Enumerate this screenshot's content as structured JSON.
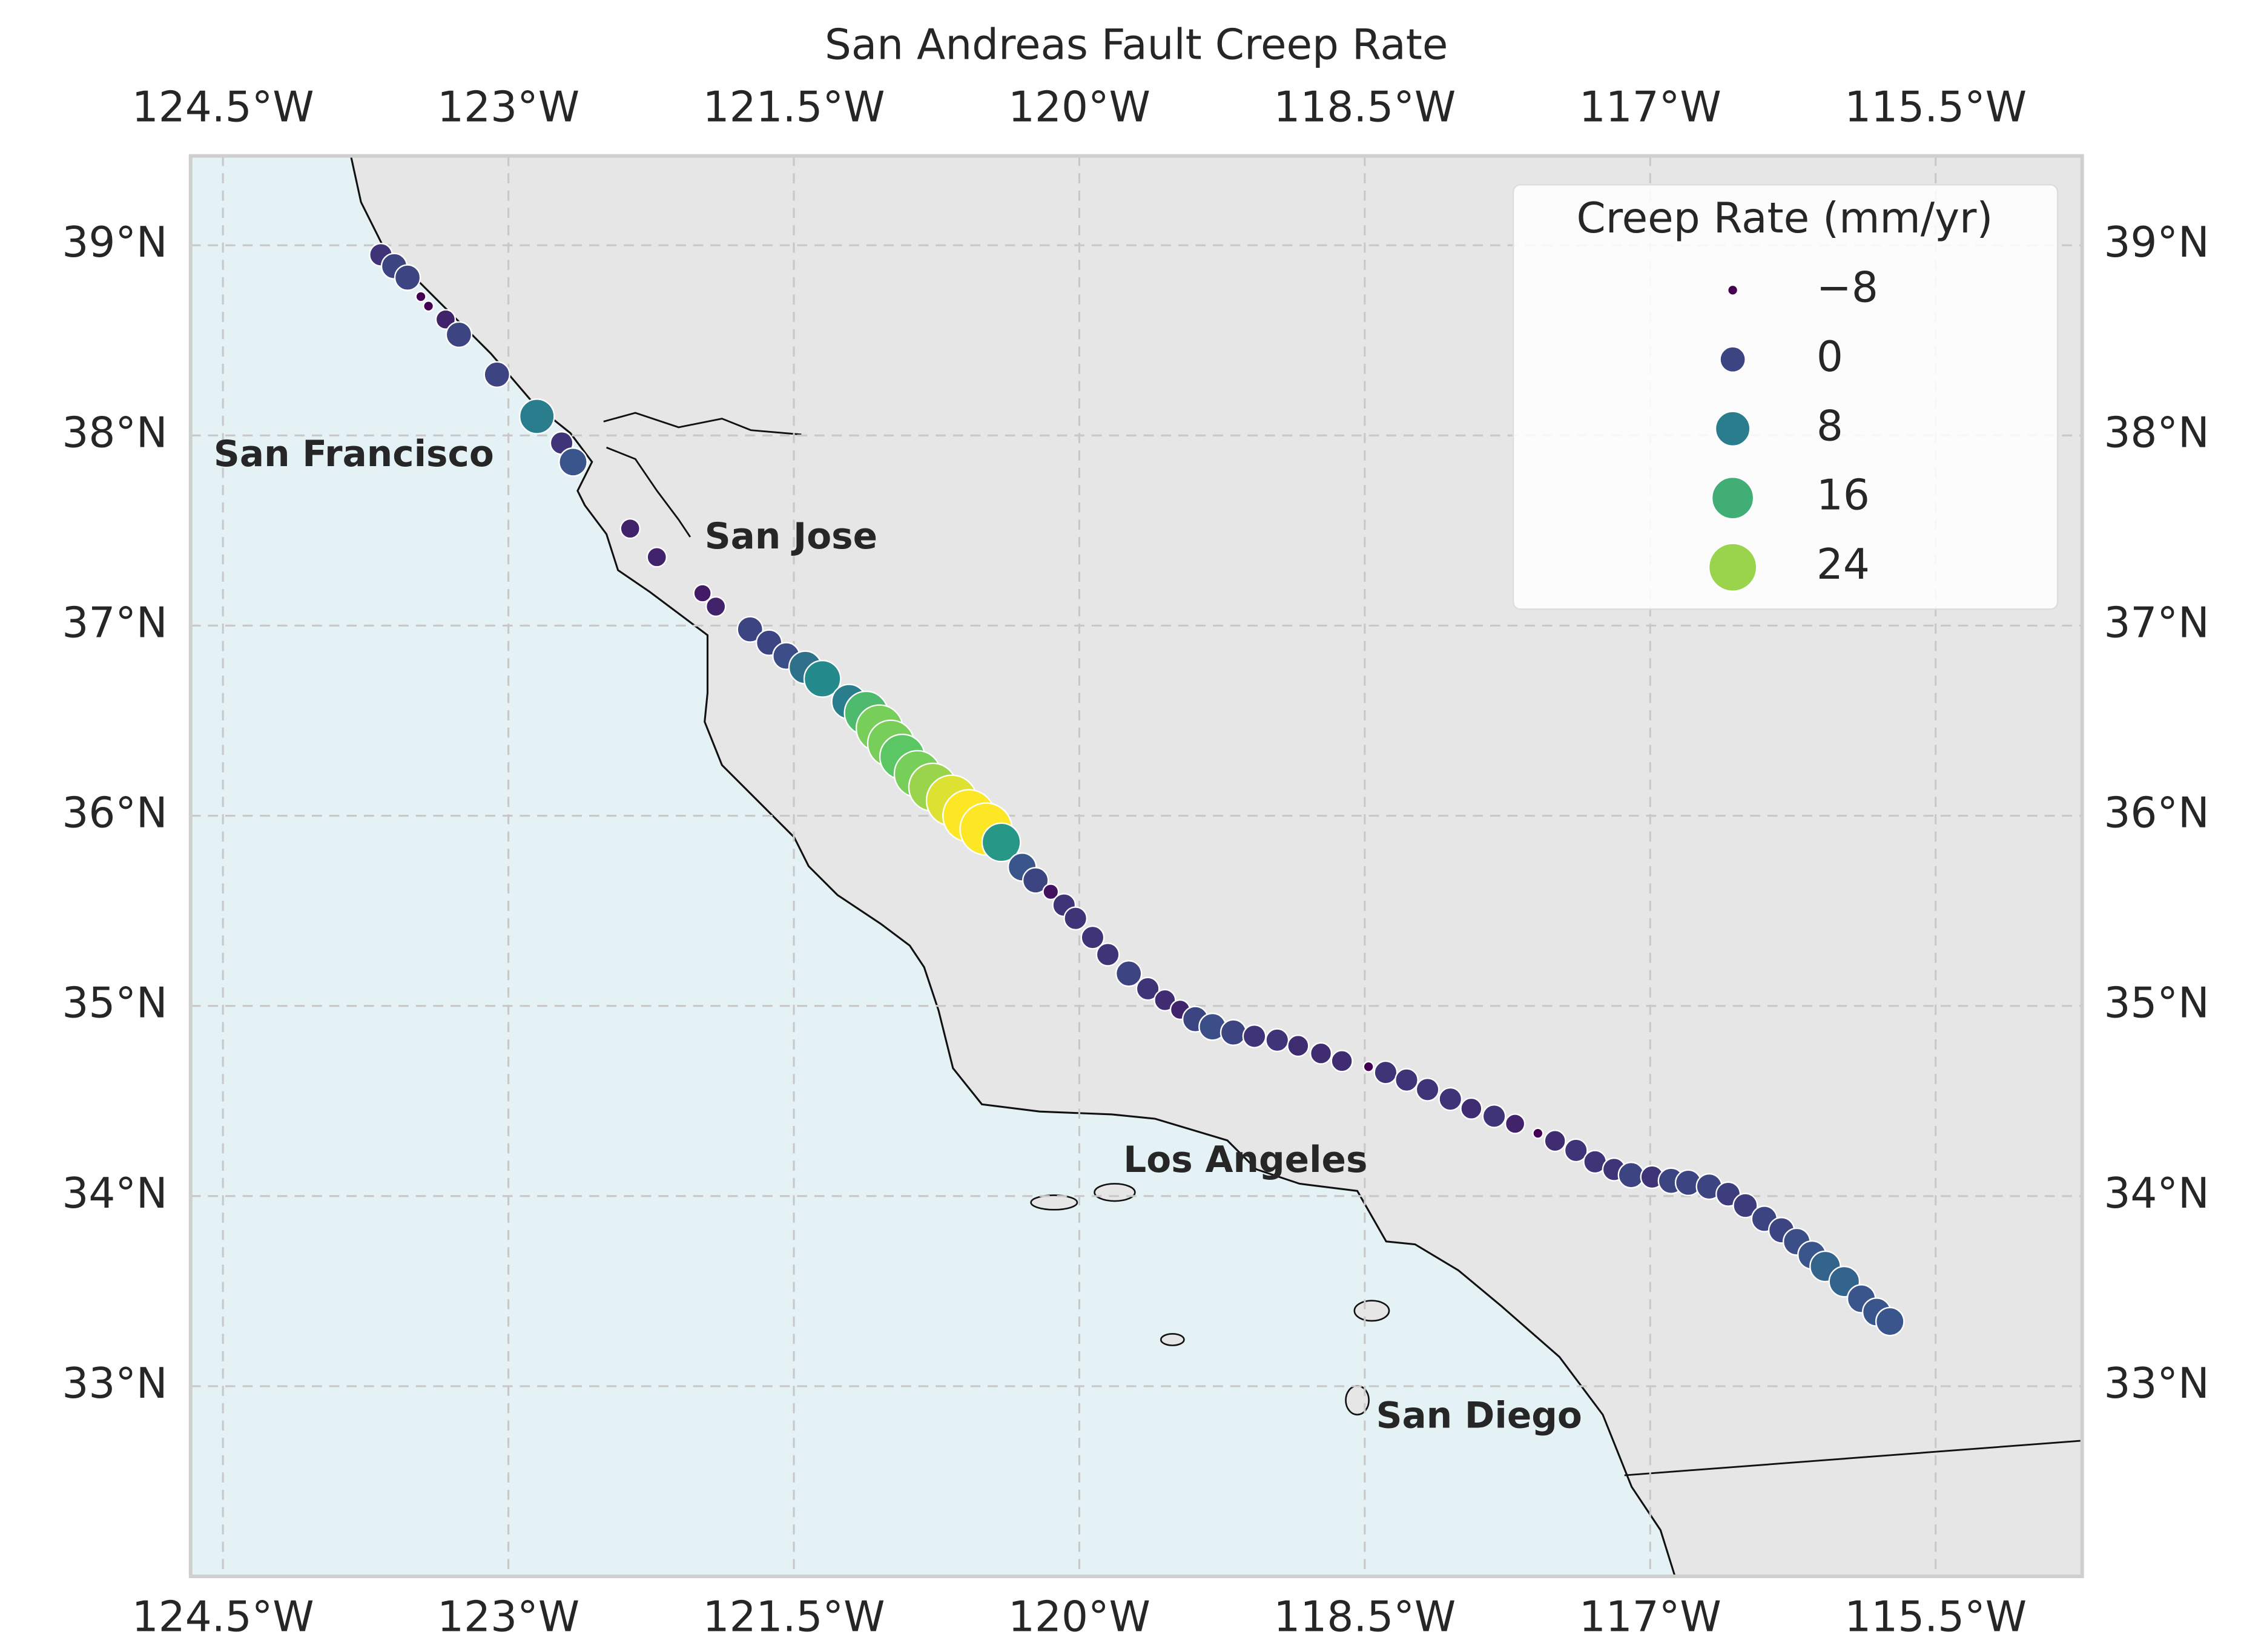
{
  "chart_data": {
    "type": "scatter",
    "title": "San Andreas Fault Creep Rate",
    "colormap": "viridis",
    "grid": true,
    "xlim": [
      -124.67,
      -114.73
    ],
    "ylim": [
      32.0,
      39.47
    ],
    "xticks": [
      {
        "value": -124.5,
        "label": "124.5°W"
      },
      {
        "value": -123,
        "label": "123°W"
      },
      {
        "value": -121.5,
        "label": "121.5°W"
      },
      {
        "value": -120,
        "label": "120°W"
      },
      {
        "value": -118.5,
        "label": "118.5°W"
      },
      {
        "value": -117,
        "label": "117°W"
      },
      {
        "value": -115.5,
        "label": "115.5°W"
      }
    ],
    "yticks": [
      {
        "value": 33,
        "label": "33°N"
      },
      {
        "value": 34,
        "label": "34°N"
      },
      {
        "value": 35,
        "label": "35°N"
      },
      {
        "value": 36,
        "label": "36°N"
      },
      {
        "value": 37,
        "label": "37°N"
      },
      {
        "value": 38,
        "label": "38°N"
      },
      {
        "value": 39,
        "label": "39°N"
      }
    ],
    "x": [
      -123.67,
      -123.6,
      -123.53,
      -123.46,
      -123.42,
      -123.33,
      -123.26,
      -123.06,
      -122.85,
      -122.72,
      -122.66,
      -122.36,
      -122.22,
      -121.98,
      -121.91,
      -121.73,
      -121.63,
      -121.54,
      -121.44,
      -121.35,
      -121.21,
      -121.12,
      -121.05,
      -120.99,
      -120.93,
      -120.85,
      -120.77,
      -120.67,
      -120.58,
      -120.49,
      -120.41,
      -120.3,
      -120.23,
      -120.15,
      -120.08,
      -120.02,
      -119.93,
      -119.85,
      -119.74,
      -119.64,
      -119.55,
      -119.47,
      -119.39,
      -119.3,
      -119.19,
      -119.08,
      -118.96,
      -118.85,
      -118.73,
      -118.62,
      -118.48,
      -118.39,
      -118.28,
      -118.17,
      -118.05,
      -117.94,
      -117.82,
      -117.71,
      -117.59,
      -117.5,
      -117.39,
      -117.29,
      -117.19,
      -117.1,
      -116.99,
      -116.89,
      -116.8,
      -116.69,
      -116.59,
      -116.5,
      -116.4,
      -116.31,
      -116.23,
      -116.15,
      -116.08,
      -115.98,
      -115.89,
      -115.81,
      -115.74
    ],
    "y": [
      38.95,
      38.89,
      38.83,
      38.73,
      38.68,
      38.61,
      38.53,
      38.32,
      38.1,
      37.96,
      37.86,
      37.51,
      37.36,
      37.17,
      37.1,
      36.98,
      36.91,
      36.84,
      36.78,
      36.72,
      36.6,
      36.54,
      36.46,
      36.38,
      36.31,
      36.22,
      36.15,
      36.08,
      36.0,
      35.93,
      35.86,
      35.73,
      35.66,
      35.6,
      35.53,
      35.46,
      35.36,
      35.27,
      35.17,
      35.09,
      35.03,
      34.98,
      34.93,
      34.89,
      34.86,
      34.84,
      34.82,
      34.79,
      34.75,
      34.71,
      34.68,
      34.65,
      34.61,
      34.56,
      34.51,
      34.46,
      34.42,
      34.38,
      34.33,
      34.29,
      34.24,
      34.18,
      34.14,
      34.11,
      34.1,
      34.08,
      34.07,
      34.05,
      34.01,
      33.95,
      33.88,
      33.82,
      33.76,
      33.69,
      33.63,
      33.55,
      33.46,
      33.39,
      33.34
    ],
    "values": [
      -2,
      0,
      0,
      -8,
      -8,
      -4,
      0,
      0,
      8,
      -2,
      2,
      -4,
      -4,
      -5,
      -4,
      0,
      0,
      1,
      6,
      10,
      8,
      18,
      22,
      22,
      20,
      22,
      24,
      28,
      30,
      30,
      12,
      2,
      0,
      -6,
      -2,
      -2,
      -2,
      -2,
      0,
      -2,
      -3,
      -4,
      0,
      1,
      0,
      -2,
      -2,
      -3,
      -3,
      -3,
      -8,
      -2,
      -2,
      -2,
      -2,
      -3,
      -2,
      -4,
      -8,
      -3,
      -2,
      -2,
      -2,
      0,
      -2,
      0,
      0,
      0,
      -1,
      -1,
      0,
      0,
      1,
      2,
      4,
      4,
      2,
      2,
      2
    ],
    "size_legend": {
      "title": "Creep Rate (mm/yr)",
      "values": [
        {
          "value": -8,
          "label": "−8"
        },
        0,
        8,
        16,
        24
      ]
    },
    "cities": [
      "San Francisco",
      "San Jose",
      "Los Angeles",
      "San Diego"
    ]
  }
}
